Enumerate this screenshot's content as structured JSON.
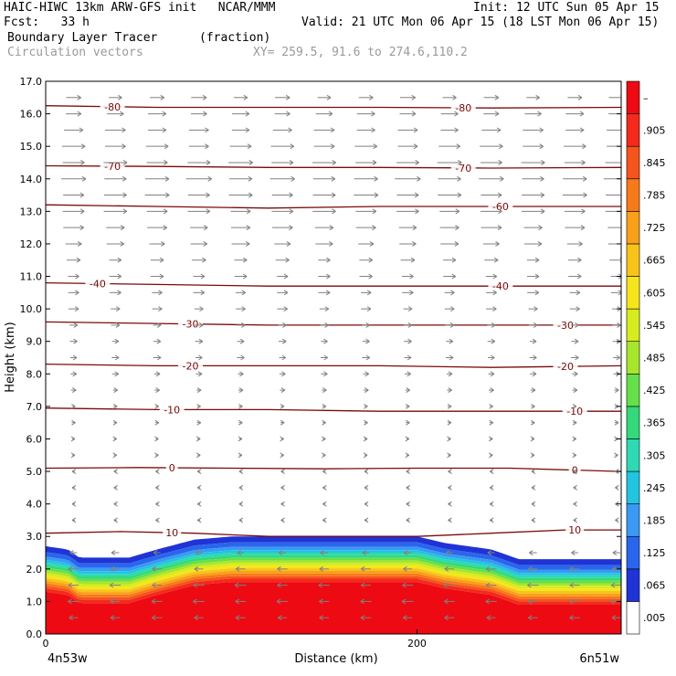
{
  "header": {
    "line1_left": "HAIC-HIWC 13km ARW-GFS init   NCAR/MMM",
    "line1_right": "Init: 12 UTC Sun 05 Apr 15",
    "line2_left": "Fcst:   33 h",
    "line2_right": "Valid: 21 UTC Mon 06 Apr 15 (18 LST Mon 06 Apr 15)",
    "field_name": "Boundary Layer Tracer",
    "field_units": "(fraction)",
    "vector_label": "Circulation vectors",
    "xy_label": "XY= 259.5, 91.6 to 274.6,110.2"
  },
  "colors": {
    "contour": "#7a0a0a",
    "vector": "#808080",
    "palette": [
      "#ffffff",
      "#1f33d6",
      "#2a66ec",
      "#3a99f5",
      "#22c4e0",
      "#2ed9b4",
      "#33d97a",
      "#66e04a",
      "#a8e52d",
      "#d6ec1f",
      "#f5e51a",
      "#f8c419",
      "#f9a01a",
      "#f77a18",
      "#f5541c",
      "#f32a1c",
      "#ee0a12"
    ]
  },
  "chart_data": {
    "type": "heatmap",
    "xlabel": "Distance (km)",
    "ylabel": "Height (km)",
    "xlim": [
      0,
      310
    ],
    "ylim": [
      0,
      17
    ],
    "x_ticks": [
      0,
      200
    ],
    "x_tick_labels": [
      "0",
      "200"
    ],
    "x_end_labels": [
      "4n53w",
      "6n51w"
    ],
    "y_ticks": [
      0,
      1,
      2,
      3,
      4,
      5,
      6,
      7,
      8,
      9,
      10,
      11,
      12,
      13,
      14,
      15,
      16,
      17
    ],
    "y_tick_labels": [
      "0.0",
      "1.0",
      "2.0",
      "3.0",
      "4.0",
      "5.0",
      "6.0",
      "7.0",
      "8.0",
      "9.0",
      "10.0",
      "11.0",
      "12.0",
      "13.0",
      "14.0",
      "15.0",
      "16.0",
      "17.0"
    ],
    "colorbar": {
      "labels": [
        ".005",
        ".065",
        ".125",
        ".185",
        ".245",
        ".305",
        ".365",
        ".425",
        ".485",
        ".545",
        ".605",
        ".665",
        ".725",
        ".785",
        ".845",
        ".905",
        "–"
      ],
      "boundaries": [
        0.005,
        0.065,
        0.125,
        0.185,
        0.245,
        0.305,
        0.365,
        0.425,
        0.485,
        0.545,
        0.605,
        0.665,
        0.725,
        0.785,
        0.845,
        0.905
      ]
    },
    "tracer_top_profile": {
      "x": [
        0,
        12,
        18,
        45,
        60,
        80,
        100,
        130,
        160,
        200,
        215,
        240,
        255,
        270,
        295,
        310
      ],
      "z": [
        2.7,
        2.6,
        2.35,
        2.35,
        2.6,
        2.9,
        3.0,
        3.0,
        3.0,
        3.0,
        2.8,
        2.6,
        2.3,
        2.3,
        2.3,
        2.3
      ]
    },
    "temperature_contours": [
      {
        "label": "10",
        "x": [
          0,
          40,
          80,
          120,
          160,
          200,
          240,
          280,
          310
        ],
        "z": [
          3.1,
          3.15,
          3.1,
          3.0,
          3.0,
          3.0,
          3.1,
          3.2,
          3.2
        ],
        "label_positions": [
          68,
          285
        ]
      },
      {
        "label": "0",
        "x": [
          0,
          50,
          100,
          150,
          200,
          250,
          310
        ],
        "z": [
          5.1,
          5.12,
          5.1,
          5.08,
          5.1,
          5.1,
          5.0
        ],
        "label_positions": [
          68,
          285
        ]
      },
      {
        "label": "-10",
        "x": [
          0,
          60,
          120,
          180,
          240,
          310
        ],
        "z": [
          6.95,
          6.9,
          6.9,
          6.85,
          6.85,
          6.85
        ],
        "label_positions": [
          68,
          285
        ]
      },
      {
        "label": "-20",
        "x": [
          0,
          60,
          120,
          180,
          240,
          310
        ],
        "z": [
          8.3,
          8.25,
          8.25,
          8.25,
          8.2,
          8.25
        ],
        "label_positions": [
          78,
          280
        ]
      },
      {
        "label": "-30",
        "x": [
          0,
          60,
          120,
          180,
          240,
          310
        ],
        "z": [
          9.6,
          9.55,
          9.5,
          9.5,
          9.5,
          9.5
        ],
        "label_positions": [
          78,
          280
        ]
      },
      {
        "label": "-40",
        "x": [
          0,
          60,
          120,
          180,
          240,
          310
        ],
        "z": [
          10.8,
          10.75,
          10.7,
          10.7,
          10.7,
          10.7
        ],
        "label_positions": [
          28,
          245
        ]
      },
      {
        "label": "-60",
        "x": [
          0,
          60,
          120,
          180,
          240,
          310
        ],
        "z": [
          13.2,
          13.15,
          13.1,
          13.15,
          13.15,
          13.15
        ],
        "label_positions": [
          245
        ]
      },
      {
        "label": "-70",
        "x": [
          0,
          60,
          120,
          180,
          240,
          310
        ],
        "z": [
          14.4,
          14.38,
          14.35,
          14.35,
          14.33,
          14.35
        ],
        "label_positions": [
          36,
          225
        ]
      },
      {
        "label": "-80",
        "x": [
          0,
          60,
          120,
          180,
          240,
          310
        ],
        "z": [
          16.25,
          16.2,
          16.2,
          16.2,
          16.18,
          16.2
        ],
        "label_positions": [
          36,
          225
        ]
      }
    ],
    "circulation_vectors": {
      "description_levels_km": [
        0.5,
        1.0,
        1.5,
        2.0,
        2.5,
        3.5,
        4.0,
        4.5,
        5.0,
        5.5,
        6.0,
        6.5,
        7.0,
        7.5,
        8.0,
        8.5,
        9.0,
        9.5,
        10.0,
        10.5,
        11.0,
        11.5,
        12.0,
        12.5,
        13.0,
        13.5,
        14.0,
        14.5,
        15.0,
        15.5,
        16.0,
        16.5
      ],
      "u_by_level": [
        -0.4,
        -0.45,
        -0.45,
        -0.4,
        -0.3,
        -0.1,
        -0.1,
        -0.1,
        -0.05,
        0.0,
        0.1,
        0.15,
        0.15,
        0.2,
        0.25,
        0.3,
        0.3,
        0.35,
        0.4,
        0.45,
        0.5,
        0.55,
        0.7,
        0.8,
        0.9,
        0.95,
        1.0,
        0.95,
        0.9,
        0.8,
        0.7,
        0.6
      ]
    }
  }
}
